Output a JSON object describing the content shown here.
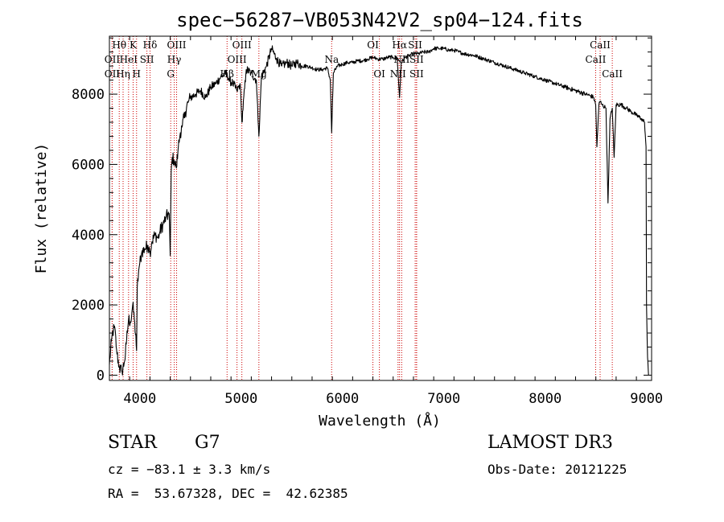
{
  "chart_data": {
    "type": "line",
    "title": "spec−56287−VB053N42V2_sp04−124.fits",
    "xlabel": "Wavelength (Å)",
    "ylabel": "Flux (relative)",
    "xlim": [
      3700,
      9050
    ],
    "ylim": [
      -150,
      9650
    ],
    "xticks": [
      4000,
      5000,
      6000,
      7000,
      8000,
      9000
    ],
    "xtick_labels": [
      "4000",
      "5000",
      "6000",
      "7000",
      "8000",
      "9000"
    ],
    "yticks": [
      0,
      2000,
      4000,
      6000,
      8000
    ],
    "ytick_labels": [
      "0",
      "2000",
      "4000",
      "6000",
      "8000"
    ],
    "series": [
      {
        "name": "flux",
        "x": [
          3700,
          3725,
          3750,
          3775,
          3800,
          3825,
          3850,
          3870,
          3890,
          3910,
          3930,
          3950,
          3968,
          3975,
          3990,
          4000,
          4020,
          4050,
          4080,
          4101,
          4120,
          4150,
          4180,
          4200,
          4230,
          4260,
          4290,
          4300,
          4310,
          4320,
          4340,
          4361,
          4380,
          4400,
          4420,
          4450,
          4480,
          4500,
          4550,
          4600,
          4650,
          4700,
          4750,
          4800,
          4861,
          4880,
          4920,
          4959,
          4990,
          5007,
          5050,
          5100,
          5150,
          5175,
          5200,
          5250,
          5300,
          5350,
          5400,
          5450,
          5500,
          5550,
          5600,
          5650,
          5700,
          5750,
          5800,
          5850,
          5880,
          5893,
          5910,
          5950,
          6000,
          6050,
          6100,
          6150,
          6200,
          6250,
          6300,
          6350,
          6400,
          6450,
          6500,
          6540,
          6563,
          6580,
          6620,
          6660,
          6700,
          6750,
          6800,
          6850,
          6900,
          6950,
          7000,
          7050,
          7100,
          7150,
          7200,
          7300,
          7400,
          7500,
          7600,
          7700,
          7800,
          7900,
          8000,
          8100,
          8200,
          8300,
          8400,
          8450,
          8480,
          8498,
          8510,
          8530,
          8542,
          8560,
          8600,
          8620,
          8640,
          8662,
          8680,
          8700,
          8750,
          8800,
          8850,
          8900,
          8950,
          8980,
          8995,
          9000,
          9010,
          9020
        ],
        "values": [
          300,
          1100,
          1400,
          600,
          200,
          100,
          400,
          1000,
          1600,
          1500,
          2000,
          1500,
          700,
          2500,
          3000,
          3200,
          3500,
          3600,
          3700,
          3500,
          3800,
          4000,
          3900,
          4100,
          4300,
          4500,
          4600,
          3400,
          5800,
          6200,
          6100,
          5900,
          6500,
          6900,
          7100,
          7500,
          7800,
          7900,
          8000,
          8100,
          7900,
          8200,
          8300,
          8500,
          8600,
          8400,
          8300,
          8100,
          8300,
          7200,
          8700,
          8600,
          8400,
          6800,
          8500,
          8800,
          9300,
          9000,
          8800,
          8900,
          8800,
          8900,
          8800,
          8800,
          8750,
          8700,
          8700,
          8750,
          8400,
          6900,
          8600,
          8800,
          8850,
          8900,
          8900,
          8950,
          8950,
          9000,
          9050,
          9000,
          9000,
          9050,
          9050,
          9000,
          7900,
          8900,
          9050,
          9100,
          9150,
          9150,
          9200,
          9200,
          9300,
          9300,
          9300,
          9250,
          9250,
          9200,
          9150,
          9100,
          9000,
          8900,
          8800,
          8700,
          8600,
          8500,
          8400,
          8300,
          8200,
          8100,
          8000,
          7950,
          7900,
          7700,
          6500,
          7700,
          7800,
          7700,
          7600,
          4900,
          7300,
          7600,
          6200,
          7700,
          7700,
          7600,
          7500,
          7400,
          7300,
          7200,
          6500,
          2000,
          500,
          0
        ]
      }
    ],
    "lines": [
      {
        "label": "Hθ",
        "x": 3797,
        "row": 1
      },
      {
        "label": "OII",
        "x": 3727,
        "row": 2
      },
      {
        "label": "OII",
        "x": 3727,
        "row": 3
      },
      {
        "label": "Hη",
        "x": 3835,
        "row": 3
      },
      {
        "label": "K",
        "x": 3934,
        "row": 1
      },
      {
        "label": "HeI",
        "x": 3889,
        "row": 2
      },
      {
        "label": "SII",
        "x": 4070,
        "row": 2
      },
      {
        "label": "H",
        "x": 3968,
        "row": 3
      },
      {
        "label": "Hδ",
        "x": 4101,
        "row": 1
      },
      {
        "label": "OIII",
        "x": 4363,
        "row": 1
      },
      {
        "label": "Hγ",
        "x": 4340,
        "row": 2
      },
      {
        "label": "G",
        "x": 4305,
        "row": 3
      },
      {
        "label": "OIII",
        "x": 5007,
        "row": 1
      },
      {
        "label": "OIII",
        "x": 4959,
        "row": 2
      },
      {
        "label": "Hβ",
        "x": 4861,
        "row": 3
      },
      {
        "label": "Mg",
        "x": 5175,
        "row": 3
      },
      {
        "label": "Na",
        "x": 5893,
        "row": 2
      },
      {
        "label": "OI",
        "x": 6300,
        "row": 1
      },
      {
        "label": "OI",
        "x": 6364,
        "row": 3
      },
      {
        "label": "Hα",
        "x": 6563,
        "row": 1
      },
      {
        "label": "SII",
        "x": 6717,
        "row": 1
      },
      {
        "label": "NII",
        "x": 6584,
        "row": 2
      },
      {
        "label": "SII",
        "x": 6731,
        "row": 2
      },
      {
        "label": "NII",
        "x": 6548,
        "row": 3
      },
      {
        "label": "SII",
        "x": 6731,
        "row": 3
      },
      {
        "label": "CaII",
        "x": 8542,
        "row": 1
      },
      {
        "label": "CaII",
        "x": 8498,
        "row": 2
      },
      {
        "label": "CaII",
        "x": 8662,
        "row": 3
      }
    ]
  },
  "info": {
    "object_class": "STAR",
    "subclass": "G7",
    "survey": "LAMOST DR3",
    "redshift": "cz = −83.1 ± 3.3 km/s",
    "obs_date": "Obs-Date: 20121225",
    "coords": "RA =  53.67328, DEC =  42.62385"
  },
  "colors": {
    "spectrum": "#000000",
    "line_markers": "#cc0000",
    "axes": "#000000"
  }
}
